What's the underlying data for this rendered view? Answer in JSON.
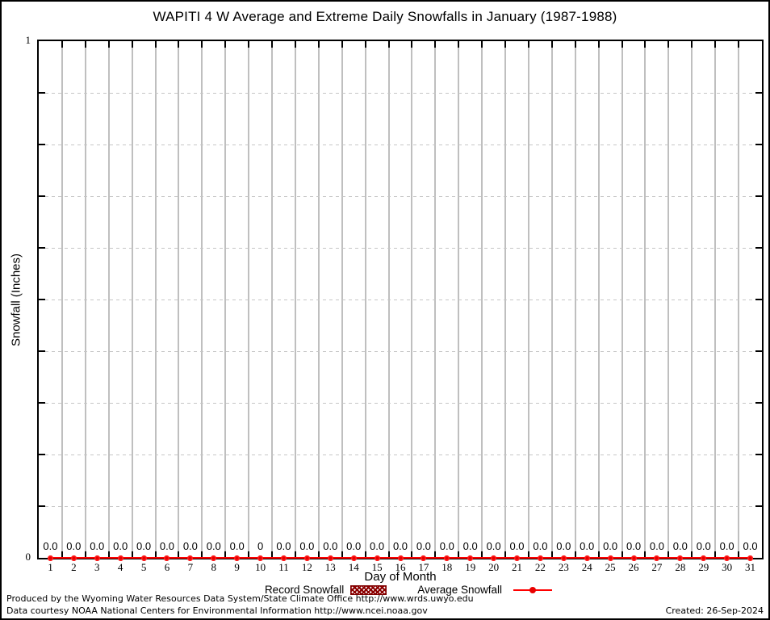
{
  "title": "WAPITI 4 W Average and Extreme Daily Snowfalls in January (1987-1988)",
  "chart_data": {
    "type": "line",
    "title": "WAPITI 4 W Average and Extreme Daily Snowfalls in January (1987-1988)",
    "xlabel": "Day of Month",
    "ylabel": "Snowfall (Inches)",
    "xlim": [
      1,
      31
    ],
    "ylim": [
      0,
      1
    ],
    "grid": true,
    "legend_position": "bottom",
    "x": [
      1,
      2,
      3,
      4,
      5,
      6,
      7,
      8,
      9,
      10,
      11,
      12,
      13,
      14,
      15,
      16,
      17,
      18,
      19,
      20,
      21,
      22,
      23,
      24,
      25,
      26,
      27,
      28,
      29,
      30,
      31
    ],
    "series": [
      {
        "name": "Record Snowfall",
        "style": "hatched-bar",
        "color": "#8b0000",
        "values": [
          0,
          0,
          0,
          0,
          0,
          0,
          0,
          0,
          0,
          0,
          0,
          0,
          0,
          0,
          0,
          0,
          0,
          0,
          0,
          0,
          0,
          0,
          0,
          0,
          0,
          0,
          0,
          0,
          0,
          0,
          0
        ]
      },
      {
        "name": "Average Snowfall",
        "style": "line-marker",
        "color": "#ff0000",
        "values": [
          0,
          0,
          0,
          0,
          0,
          0,
          0,
          0,
          0,
          0,
          0,
          0,
          0,
          0,
          0,
          0,
          0,
          0,
          0,
          0,
          0,
          0,
          0,
          0,
          0,
          0,
          0,
          0,
          0,
          0,
          0
        ]
      }
    ],
    "point_labels": [
      "0.0",
      "0.0",
      "0.0",
      "0.0",
      "0.0",
      "0.0",
      "0.0",
      "0.0",
      "0.0",
      "0",
      "0.0",
      "0.0",
      "0.0",
      "0.0",
      "0.0",
      "0.0",
      "0.0",
      "0.0",
      "0.0",
      "0.0",
      "0.0",
      "0.0",
      "0.0",
      "0.0",
      "0.0",
      "0.0",
      "0.0",
      "0.0",
      "0.0",
      "0.0",
      "0.0"
    ],
    "yticks": [
      {
        "value": 0,
        "label": "0"
      },
      {
        "value": 1,
        "label": "1"
      }
    ],
    "minor_ytick_step": 0.1
  },
  "axis": {
    "x_title": "Day of Month",
    "y_title": "Snowfall (Inches)"
  },
  "legend": {
    "record_label": "Record Snowfall",
    "average_label": "Average Snowfall"
  },
  "footer": {
    "line1": "Produced by the Wyoming Water Resources Data System/State Climate Office http://www.wrds.uwyo.edu",
    "line2": "Data courtesy NOAA National Centers for Environmental Information http://www.ncei.noaa.gov",
    "created": "Created: 26-Sep-2024"
  },
  "colors": {
    "average_line": "#ff0000",
    "record_fill": "#8b0000",
    "grid": "#bfbfbf",
    "text": "#000000",
    "background": "#ffffff"
  }
}
